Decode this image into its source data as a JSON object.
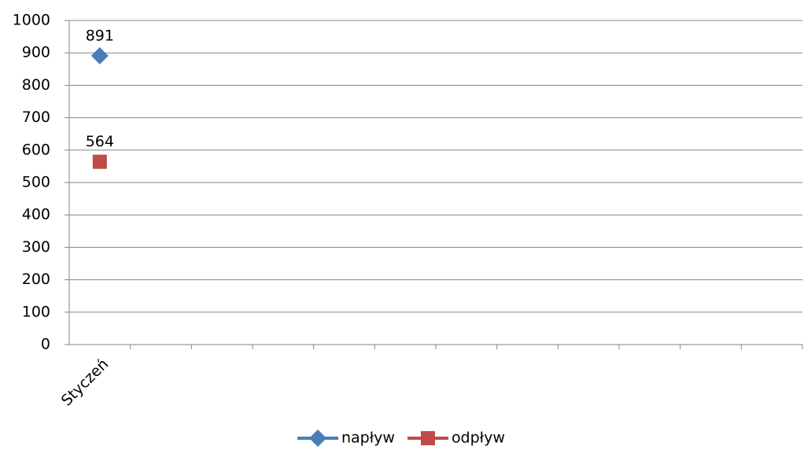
{
  "chart_data": {
    "type": "line",
    "categories": [
      "Styczeń",
      null,
      null,
      null,
      null,
      null,
      null,
      null,
      null,
      null,
      null,
      null
    ],
    "series": [
      {
        "name": "napływ",
        "color": "#4a7ebb",
        "marker": "diamond",
        "values": [
          891,
          null,
          null,
          null,
          null,
          null,
          null,
          null,
          null,
          null,
          null,
          null
        ]
      },
      {
        "name": "odpływ",
        "color": "#be4b48",
        "marker": "square",
        "values": [
          564,
          null,
          null,
          null,
          null,
          null,
          null,
          null,
          null,
          null,
          null,
          null
        ]
      }
    ],
    "ylim": [
      0,
      1000
    ],
    "yticks": [
      0,
      100,
      200,
      300,
      400,
      500,
      600,
      700,
      800,
      900,
      1000
    ],
    "grid": true,
    "data_labels": true,
    "legend": "bottom"
  }
}
